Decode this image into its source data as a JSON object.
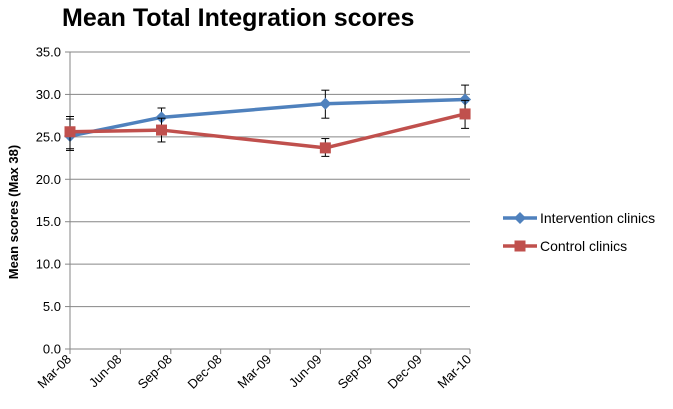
{
  "chart_data": {
    "type": "line",
    "title": "Mean Total Integration scores",
    "xlabel": "",
    "ylabel": "Mean scores (Max 38)",
    "ylim": [
      0,
      35
    ],
    "yticks": [
      "0.0",
      "5.0",
      "10.0",
      "15.0",
      "20.0",
      "25.0",
      "30.0",
      "35.0"
    ],
    "xlim": [
      "2008-03-01",
      "2010-03-01"
    ],
    "xticks": [
      {
        "date": "2008-03-01",
        "label": "Mar-08"
      },
      {
        "date": "2008-06-01",
        "label": "Jun-08"
      },
      {
        "date": "2008-09-01",
        "label": "Sep-08"
      },
      {
        "date": "2008-12-01",
        "label": "Dec-08"
      },
      {
        "date": "2009-03-01",
        "label": "Mar-09"
      },
      {
        "date": "2009-06-01",
        "label": "Jun-09"
      },
      {
        "date": "2009-09-01",
        "label": "Sep-09"
      },
      {
        "date": "2009-12-01",
        "label": "Dec-09"
      },
      {
        "date": "2010-03-01",
        "label": "Mar-10"
      }
    ],
    "grid": "horizontal",
    "legend_position": "right",
    "series": [
      {
        "name": "Intervention clinics",
        "color": "#4f81bd",
        "marker": "diamond",
        "points": [
          {
            "x": "2008-03-01",
            "y": 25.1,
            "err_low": 23.6,
            "err_high": 27.1
          },
          {
            "x": "2008-08-15",
            "y": 27.3,
            "err_low": 26.0,
            "err_high": 28.4
          },
          {
            "x": "2009-06-10",
            "y": 28.9,
            "err_low": 27.2,
            "err_high": 30.5
          },
          {
            "x": "2010-02-20",
            "y": 29.4,
            "err_low": 27.8,
            "err_high": 31.1
          }
        ]
      },
      {
        "name": "Control clinics",
        "color": "#c0504d",
        "marker": "square",
        "points": [
          {
            "x": "2008-03-01",
            "y": 25.6,
            "err_low": 23.4,
            "err_high": 27.4
          },
          {
            "x": "2008-08-15",
            "y": 25.8,
            "err_low": 24.4,
            "err_high": 27.2
          },
          {
            "x": "2009-06-10",
            "y": 23.7,
            "err_low": 22.7,
            "err_high": 24.8
          },
          {
            "x": "2010-02-20",
            "y": 27.7,
            "err_low": 26.0,
            "err_high": 29.3
          }
        ]
      }
    ]
  }
}
